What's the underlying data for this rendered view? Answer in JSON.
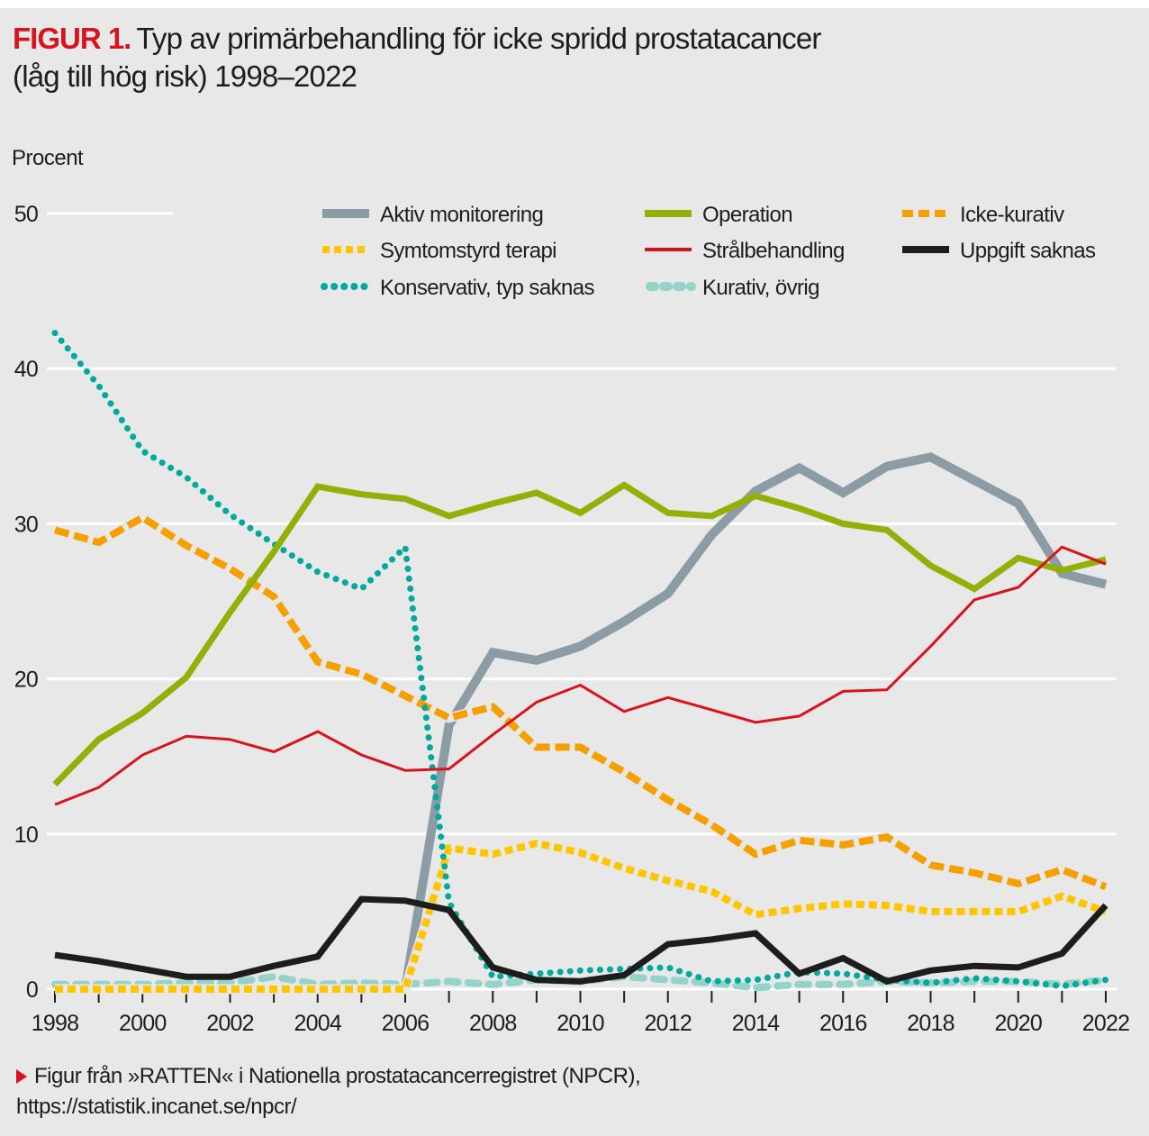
{
  "figure": {
    "label": "FIGUR 1.",
    "title_line1": "Typ av primärbehandling för icke spridd prostatacancer",
    "title_line2": "(låg till hög risk) 1998–2022",
    "y_unit_label": "Procent",
    "source_line1": "Figur från »RATTEN« i Nationella prostatacancerregistret (NPCR),",
    "source_line2": "https://statistik.incanet.se/npcr/",
    "source_bullet_icon": "red-triangle-arrow",
    "accent_color": "#d7141d",
    "background_color": "#e8e8e8"
  },
  "chart_data": {
    "type": "line",
    "title": "Typ av primärbehandling för icke spridd prostatacancer (låg till hög risk) 1998–2022",
    "xlabel": "",
    "ylabel": "Procent",
    "ylim": [
      0,
      50
    ],
    "xlim": [
      1998,
      2022
    ],
    "grid": true,
    "legend_position": "top",
    "yticks": [
      0,
      10,
      20,
      30,
      40,
      50
    ],
    "xticks_labeled": [
      1998,
      2000,
      2002,
      2004,
      2006,
      2008,
      2010,
      2012,
      2014,
      2016,
      2018,
      2020,
      2022
    ],
    "x": [
      1998,
      1999,
      2000,
      2001,
      2002,
      2003,
      2004,
      2005,
      2006,
      2007,
      2008,
      2009,
      2010,
      2011,
      2012,
      2013,
      2014,
      2015,
      2016,
      2017,
      2018,
      2019,
      2020,
      2021,
      2022
    ],
    "series": [
      {
        "name": "Aktiv monitorering",
        "color": "#8c9ca5",
        "style": "solid-thick",
        "values": [
          0,
          0,
          0,
          0,
          0,
          0,
          0,
          0,
          0,
          17.0,
          21.7,
          21.2,
          22.1,
          23.7,
          25.5,
          29.3,
          32.1,
          33.6,
          32.0,
          33.7,
          34.3,
          32.8,
          31.3,
          26.8,
          26.1
        ]
      },
      {
        "name": "Operation",
        "color": "#93b008",
        "style": "solid",
        "values": [
          13.2,
          16.1,
          17.8,
          20.1,
          24.3,
          28.2,
          32.4,
          31.9,
          31.6,
          30.5,
          31.3,
          32.0,
          30.7,
          32.5,
          30.7,
          30.5,
          31.8,
          31.0,
          30.0,
          29.6,
          27.3,
          25.8,
          27.8,
          27.0,
          27.7
        ]
      },
      {
        "name": "Icke-kurativ",
        "color": "#f5a000",
        "style": "dashed",
        "values": [
          29.6,
          28.8,
          30.4,
          28.6,
          27.1,
          25.3,
          21.1,
          20.3,
          18.9,
          17.5,
          18.2,
          15.6,
          15.6,
          14.0,
          12.2,
          10.6,
          8.7,
          9.6,
          9.3,
          9.8,
          8.0,
          7.5,
          6.8,
          7.7,
          6.6
        ]
      },
      {
        "name": "Symtomstyrd terapi",
        "color": "#ffc600",
        "style": "short-dashed",
        "values": [
          0,
          0,
          0,
          0,
          0,
          0,
          0,
          0,
          0,
          9.1,
          8.7,
          9.4,
          8.8,
          7.8,
          7.0,
          6.3,
          4.8,
          5.2,
          5.5,
          5.4,
          5.0,
          5.0,
          5.0,
          6.0,
          5.0
        ]
      },
      {
        "name": "Strålbehandling",
        "color": "#d7141d",
        "style": "thin",
        "values": [
          11.9,
          13.0,
          15.1,
          16.3,
          16.1,
          15.3,
          16.6,
          15.1,
          14.1,
          14.2,
          16.4,
          18.5,
          19.6,
          17.9,
          18.8,
          18.0,
          17.2,
          17.6,
          19.2,
          19.3,
          22.1,
          25.1,
          25.9,
          28.5,
          27.4
        ]
      },
      {
        "name": "Uppgift saknas",
        "color": "#1d1d1b",
        "style": "solid",
        "values": [
          2.2,
          1.8,
          1.3,
          0.8,
          0.8,
          1.5,
          2.1,
          5.8,
          5.7,
          5.1,
          1.4,
          0.6,
          0.5,
          0.9,
          2.9,
          3.2,
          3.6,
          1.0,
          2.0,
          0.5,
          1.2,
          1.5,
          1.4,
          2.3,
          5.4
        ]
      },
      {
        "name": "Konservativ, typ saknas",
        "color": "#00a99d",
        "style": "dotted",
        "values": [
          42.3,
          38.9,
          34.7,
          33.0,
          30.6,
          28.7,
          26.9,
          25.8,
          28.5,
          5.6,
          0.8,
          1.0,
          1.2,
          1.3,
          1.4,
          0.5,
          0.6,
          1.1,
          1.0,
          0.6,
          0.4,
          0.7,
          0.5,
          0.2,
          0.6
        ]
      },
      {
        "name": "Kurativ, övrig",
        "color": "#93d3c9",
        "style": "rounded-dashed",
        "values": [
          0.3,
          0.3,
          0.3,
          0.4,
          0.4,
          0.8,
          0.3,
          0.4,
          0.3,
          0.5,
          0.3,
          0.6,
          0.5,
          0.8,
          0.6,
          0.4,
          0.1,
          0.3,
          0.3,
          0.5,
          0.4,
          0.5,
          0.5,
          0.3,
          0.6
        ]
      }
    ]
  }
}
